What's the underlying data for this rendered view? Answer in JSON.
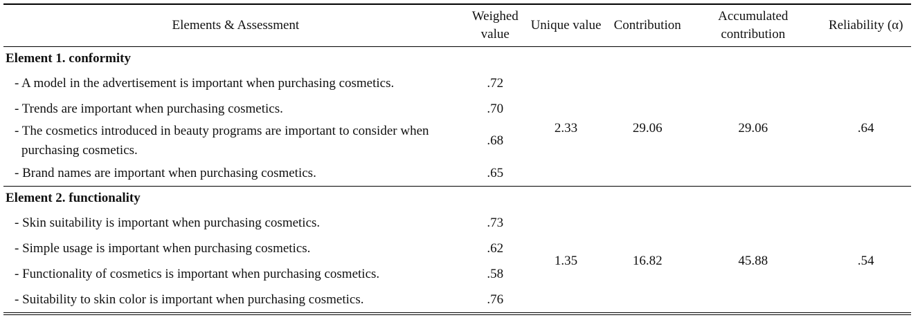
{
  "table": {
    "header": [
      "Elements & Assessment",
      "Weighed value",
      "Unique value",
      "Contribution",
      "Accumulated contribution",
      "Reliability (α)"
    ],
    "groups": [
      {
        "title": "Element 1. conformity",
        "items": [
          {
            "text": "- A model in the advertisement is important when purchasing cosmetics.",
            "weight": ".72"
          },
          {
            "text": "- Trends are important when purchasing cosmetics.",
            "weight": ".70"
          },
          {
            "text": "- The cosmetics introduced in beauty programs are important to consider when purchasing cosmetics.",
            "weight": ".68"
          },
          {
            "text": "- Brand names are important when purchasing cosmetics.",
            "weight": ".65"
          }
        ],
        "unique": "2.33",
        "contribution": "29.06",
        "accumulated": "29.06",
        "reliability": ".64"
      },
      {
        "title": "Element 2. functionality",
        "items": [
          {
            "text": "- Skin suitability is important when purchasing cosmetics.",
            "weight": ".73"
          },
          {
            "text": "- Simple usage is important when purchasing cosmetics.",
            "weight": ".62"
          },
          {
            "text": "- Functionality of cosmetics is important when purchasing cosmetics.",
            "weight": ".58"
          },
          {
            "text": "- Suitability to skin color is important when purchasing cosmetics.",
            "weight": ".76"
          }
        ],
        "unique": "1.35",
        "contribution": "16.82",
        "accumulated": "45.88",
        "reliability": ".54"
      }
    ]
  }
}
